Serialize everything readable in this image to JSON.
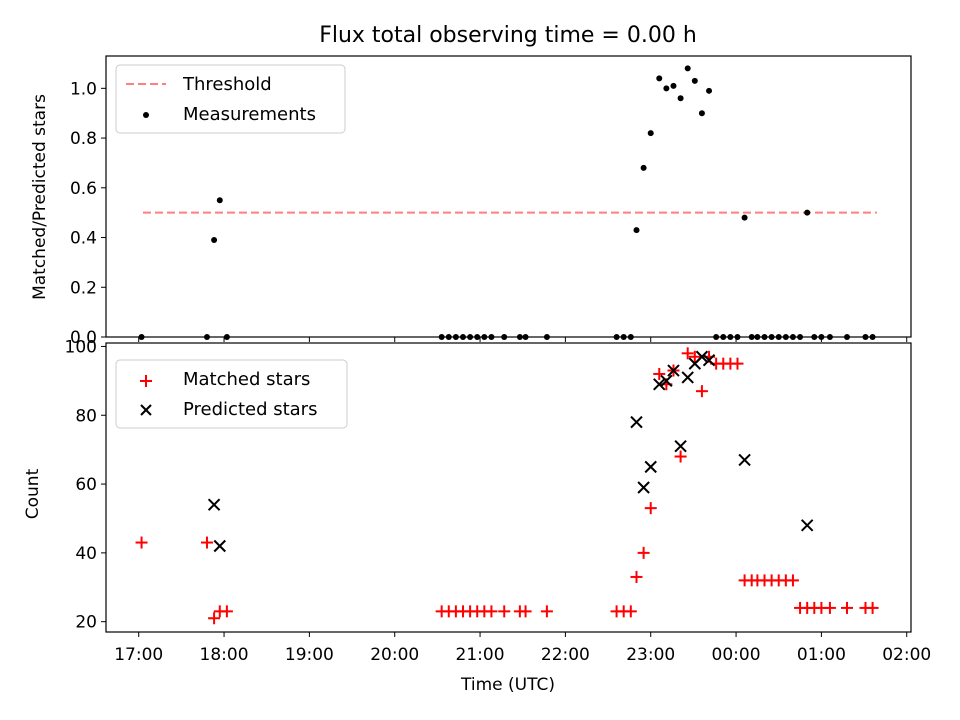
{
  "chart_data": [
    {
      "type": "scatter",
      "title": "Flux total observing time = 0.00 h",
      "xlabel": "",
      "ylabel": "Matched/Predicted stars",
      "xlim": [
        "16:37",
        "02:03"
      ],
      "ylim": [
        0,
        1.13
      ],
      "x_ticks": [
        "17:00",
        "18:00",
        "19:00",
        "20:00",
        "21:00",
        "22:00",
        "23:00",
        "00:00",
        "01:00",
        "02:00"
      ],
      "y_ticks": [
        "0.0",
        "0.2",
        "0.4",
        "0.6",
        "0.8",
        "1.0"
      ],
      "legend_position": "upper left",
      "grid": false,
      "series": [
        {
          "name": "Threshold",
          "kind": "line",
          "style": "dashed",
          "color": "#ff7f7f",
          "x": [
            "17:03",
            "01:39"
          ],
          "y": [
            0.5,
            0.5
          ]
        },
        {
          "name": "Measurements",
          "kind": "scatter",
          "marker": "dot",
          "color": "#000000",
          "x": [
            "17:02",
            "17:48",
            "17:53",
            "17:57",
            "18:02",
            "20:33",
            "20:38",
            "20:43",
            "20:48",
            "20:53",
            "20:58",
            "21:03",
            "21:08",
            "21:17",
            "21:28",
            "21:32",
            "21:47",
            "22:36",
            "22:41",
            "22:46",
            "22:50",
            "22:55",
            "23:00",
            "23:06",
            "23:11",
            "23:16",
            "23:21",
            "23:26",
            "23:31",
            "23:36",
            "23:41",
            "23:46",
            "23:51",
            "23:56",
            "00:01",
            "00:06",
            "00:11",
            "00:15",
            "00:20",
            "00:25",
            "00:30",
            "00:35",
            "00:40",
            "00:45",
            "00:50",
            "00:55",
            "01:00",
            "01:06",
            "01:18",
            "01:31",
            "01:36"
          ],
          "y": [
            0,
            0,
            0.39,
            0.55,
            0,
            0,
            0,
            0,
            0,
            0,
            0,
            0,
            0,
            0,
            0,
            0,
            0,
            0,
            0,
            0,
            0.43,
            0.68,
            0.82,
            1.04,
            1.0,
            1.01,
            0.96,
            1.08,
            1.03,
            0.9,
            0.99,
            0,
            0,
            0,
            0,
            0.48,
            0,
            0,
            0,
            0,
            0,
            0,
            0,
            0,
            0.5,
            0,
            0,
            0,
            0,
            0,
            0
          ]
        }
      ]
    },
    {
      "type": "scatter",
      "title": "",
      "xlabel": "Time (UTC)",
      "ylabel": "Count",
      "xlim": [
        "16:37",
        "02:03"
      ],
      "ylim": [
        17,
        101
      ],
      "x_ticks": [
        "17:00",
        "18:00",
        "19:00",
        "20:00",
        "21:00",
        "22:00",
        "23:00",
        "00:00",
        "01:00",
        "02:00"
      ],
      "y_ticks": [
        "20",
        "40",
        "60",
        "80",
        "100"
      ],
      "legend_position": "upper left",
      "grid": false,
      "series": [
        {
          "name": "Matched stars",
          "kind": "scatter",
          "marker": "plus",
          "color": "#ff0000",
          "x": [
            "17:02",
            "17:48",
            "17:53",
            "17:57",
            "18:02",
            "20:33",
            "20:38",
            "20:43",
            "20:48",
            "20:53",
            "20:58",
            "21:03",
            "21:08",
            "21:17",
            "21:28",
            "21:32",
            "21:47",
            "22:36",
            "22:41",
            "22:46",
            "22:50",
            "22:55",
            "23:00",
            "23:06",
            "23:11",
            "23:16",
            "23:21",
            "23:26",
            "23:31",
            "23:36",
            "23:41",
            "23:46",
            "23:51",
            "23:56",
            "00:01",
            "00:06",
            "00:11",
            "00:15",
            "00:20",
            "00:25",
            "00:30",
            "00:35",
            "00:40",
            "00:45",
            "00:50",
            "00:55",
            "01:00",
            "01:06",
            "01:18",
            "01:31",
            "01:36"
          ],
          "y": [
            43,
            43,
            21,
            23,
            23,
            23,
            23,
            23,
            23,
            23,
            23,
            23,
            23,
            23,
            23,
            23,
            23,
            23,
            23,
            23,
            33,
            40,
            53,
            92,
            89,
            93,
            68,
            98,
            97,
            87,
            97,
            95,
            95,
            95,
            95,
            32,
            32,
            32,
            32,
            32,
            32,
            32,
            32,
            24,
            24,
            24,
            24,
            24,
            24,
            24,
            24
          ]
        },
        {
          "name": "Predicted stars",
          "kind": "scatter",
          "marker": "x",
          "color": "#000000",
          "x": [
            "17:53",
            "17:57",
            "22:50",
            "22:55",
            "23:00",
            "23:06",
            "23:11",
            "23:16",
            "23:21",
            "23:26",
            "23:31",
            "23:36",
            "23:41",
            "00:06",
            "00:50"
          ],
          "y": [
            54,
            42,
            78,
            59,
            65,
            89,
            90,
            93,
            71,
            91,
            95,
            97,
            96,
            67,
            48
          ]
        }
      ]
    }
  ]
}
